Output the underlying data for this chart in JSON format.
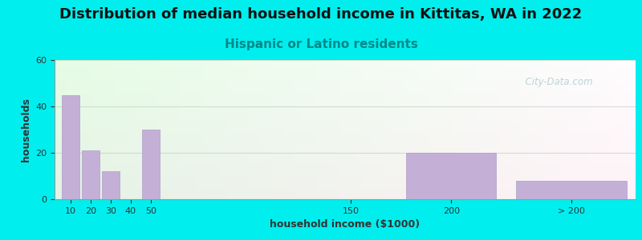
{
  "title": "Distribution of median household income in Kittitas, WA in 2022",
  "subtitle": "Hispanic or Latino residents",
  "xlabel": "household income ($1000)",
  "ylabel": "households",
  "background_outer": "#00EEEE",
  "bar_color": "#c4afd6",
  "bar_edge_color": "#b09ec8",
  "values": [
    45,
    21,
    12,
    0,
    30,
    0,
    20,
    8
  ],
  "x_positions": [
    10,
    20,
    30,
    40,
    50,
    150,
    200,
    260
  ],
  "bar_widths": [
    9,
    9,
    9,
    9,
    9,
    9,
    45,
    55
  ],
  "ylim": [
    0,
    60
  ],
  "yticks": [
    0,
    20,
    40,
    60
  ],
  "xtick_positions": [
    10,
    20,
    30,
    40,
    50,
    150,
    200,
    260
  ],
  "xtick_labels": [
    "10",
    "20",
    "30",
    "40",
    "50",
    "150",
    "200",
    "> 200"
  ],
  "watermark": "  City-Data.com",
  "title_fontsize": 13,
  "subtitle_fontsize": 11,
  "title_color": "#111111",
  "subtitle_color": "#008888",
  "axis_label_fontsize": 9,
  "tick_fontsize": 8,
  "grid_color": "#bbccbb",
  "grid_alpha": 0.6,
  "xlim_left": 2,
  "xlim_right": 292,
  "bg_colors": [
    "#eaf5e8",
    "#f0faff",
    "#ffffff"
  ],
  "watermark_color": "#aacccc",
  "watermark_alpha": 0.8
}
